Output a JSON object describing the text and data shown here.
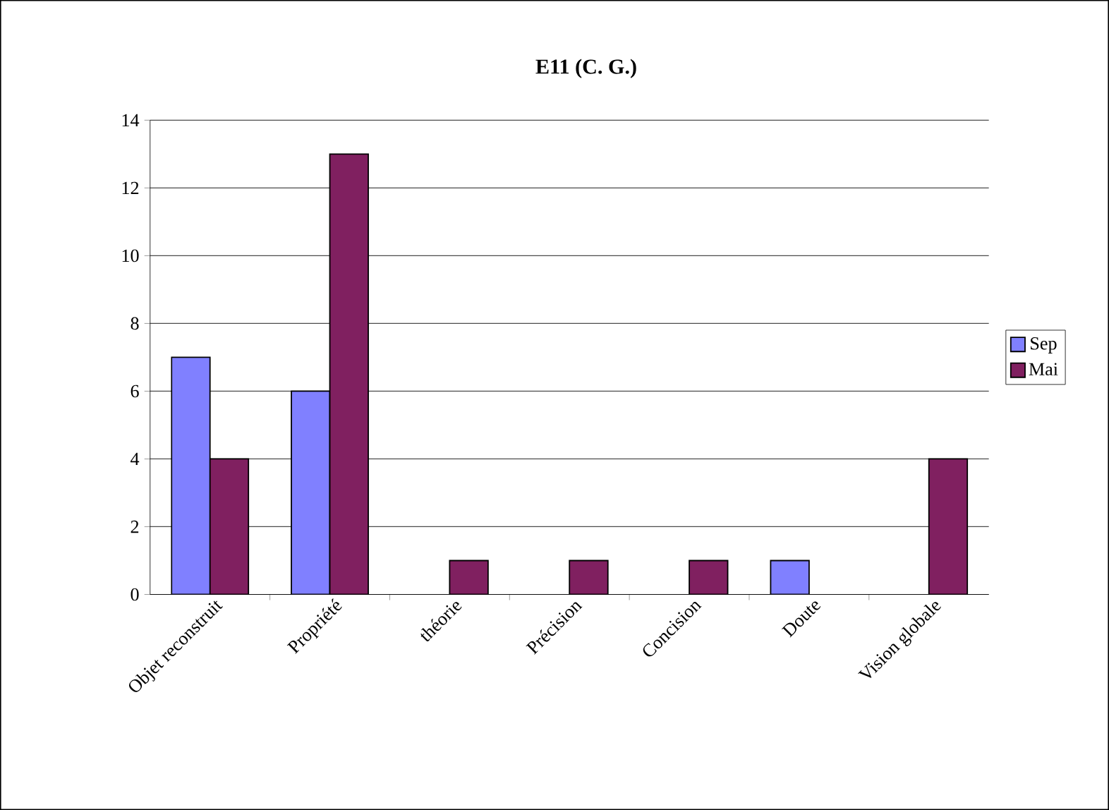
{
  "chart_data": {
    "type": "bar",
    "title": "E11 (C. G.)",
    "categories": [
      "Objet reconstruit",
      "Propriété",
      "théorie",
      "Précision",
      "Concision",
      "Doute",
      "Vision globale"
    ],
    "series": [
      {
        "name": "Sep",
        "color": "#8080ff",
        "values": [
          7,
          6,
          null,
          null,
          null,
          1,
          null
        ]
      },
      {
        "name": "Mai",
        "color": "#802060",
        "values": [
          4,
          13,
          1,
          1,
          1,
          null,
          4
        ]
      }
    ],
    "ylim": [
      0,
      14
    ],
    "yticks": [
      0,
      2,
      4,
      6,
      8,
      10,
      12,
      14
    ],
    "grid": "y",
    "legend": "right"
  }
}
